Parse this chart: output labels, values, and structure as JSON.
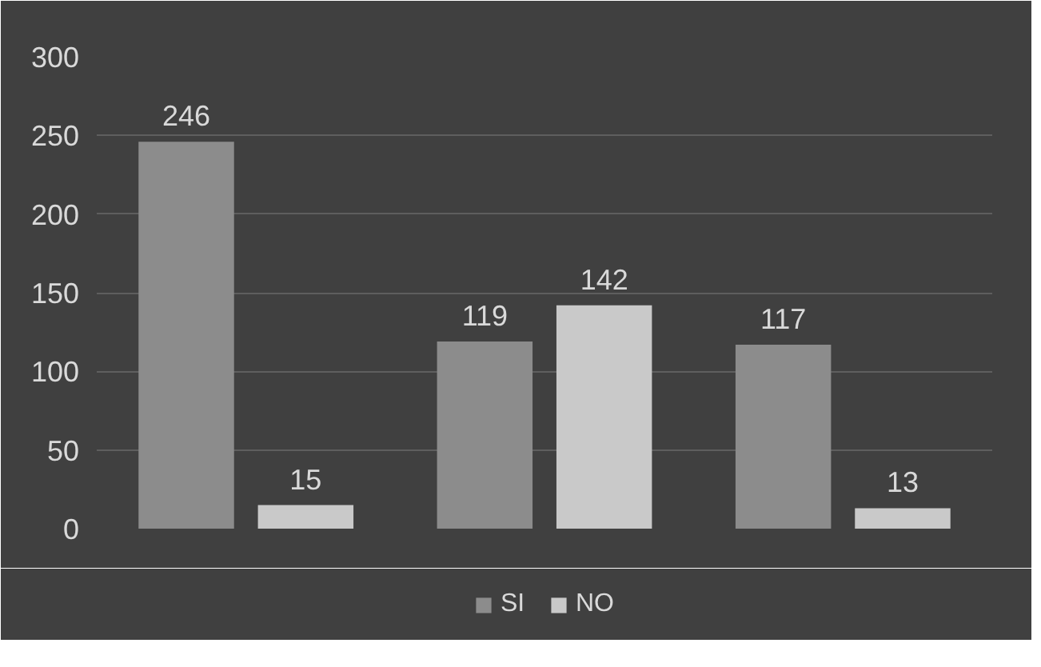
{
  "chart_data": {
    "type": "bar",
    "categories": [
      null,
      null,
      null
    ],
    "series": [
      {
        "name": "SI",
        "color": "#8c8c8c",
        "values": [
          246,
          119,
          117
        ]
      },
      {
        "name": "NO",
        "color": "#c9c9c9",
        "values": [
          15,
          142,
          13
        ]
      }
    ],
    "ylim": [
      0,
      300
    ],
    "yticks": [
      0,
      50,
      100,
      150,
      200,
      250,
      300
    ],
    "grid": "y",
    "legend": "bottom",
    "data_labels": true
  }
}
